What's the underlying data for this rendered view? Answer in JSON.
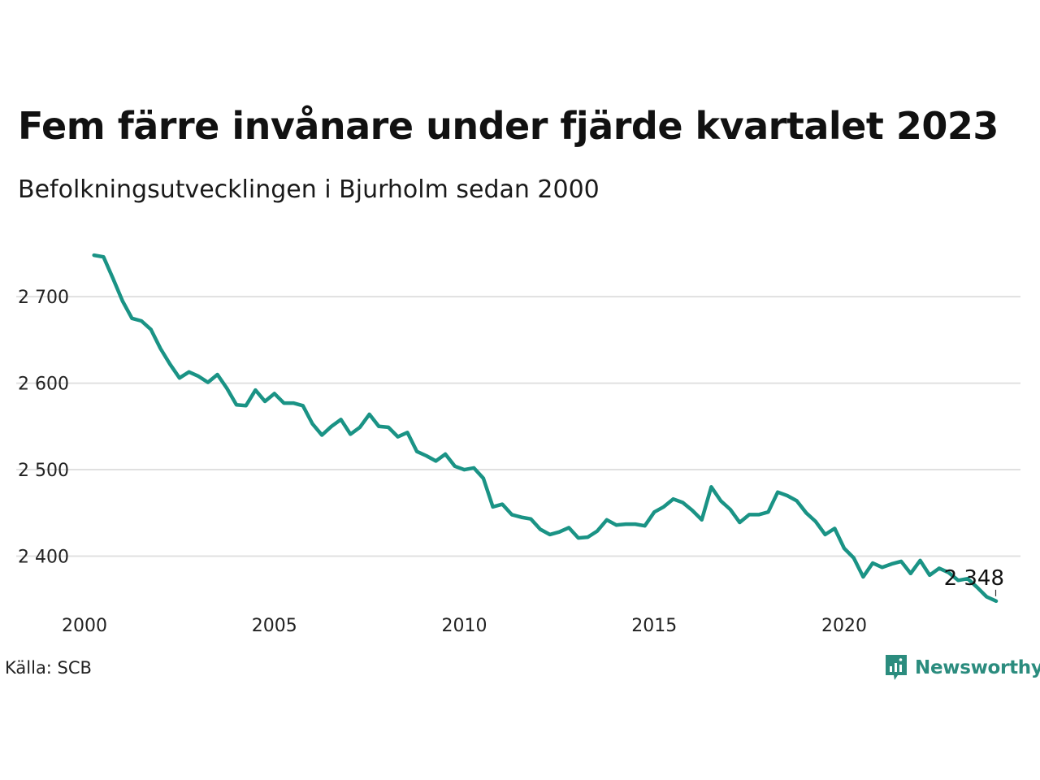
{
  "header": {
    "title": "Fem färre invånare under fjärde kvartalet 2023",
    "subtitle": "Befolkningsutvecklingen i Bjurholm sedan 2000"
  },
  "footer": {
    "source": "Källa: SCB",
    "logo_text": "Newsworthy"
  },
  "colors": {
    "line": "#1a9385",
    "grid": "#e0e0e0",
    "brand": "#2b8c7e"
  },
  "chart_data": {
    "type": "line",
    "title": "Fem färre invånare under fjärde kvartalet 2023",
    "subtitle": "Befolkningsutvecklingen i Bjurholm sedan 2000",
    "xlabel": "",
    "ylabel": "",
    "x_ticks": [
      2000,
      2005,
      2010,
      2015,
      2020
    ],
    "y_ticks": [
      2400,
      2500,
      2600,
      2700
    ],
    "y_tick_labels": [
      "2 400",
      "2 500",
      "2 600",
      "2 700"
    ],
    "xlim": [
      2000,
      2024
    ],
    "ylim": [
      2330,
      2765
    ],
    "grid": true,
    "end_label": "2 348",
    "series": [
      {
        "x": [
          2000.25,
          2000.5,
          2000.75,
          2001.0,
          2001.25,
          2001.5,
          2001.75,
          2002.0,
          2002.25,
          2002.5,
          2002.75,
          2003.0,
          2003.25,
          2003.5,
          2003.75,
          2004.0,
          2004.25,
          2004.5,
          2004.75,
          2005.0,
          2005.25,
          2005.5,
          2005.75,
          2006.0,
          2006.25,
          2006.5,
          2006.75,
          2007.0,
          2007.25,
          2007.5,
          2007.75,
          2008.0,
          2008.25,
          2008.5,
          2008.75,
          2009.0,
          2009.25,
          2009.5,
          2009.75,
          2010.0,
          2010.25,
          2010.5,
          2010.75,
          2011.0,
          2011.25,
          2011.5,
          2011.75,
          2012.0,
          2012.25,
          2012.5,
          2012.75,
          2013.0,
          2013.25,
          2013.5,
          2013.75,
          2014.0,
          2014.25,
          2014.5,
          2014.75,
          2015.0,
          2015.25,
          2015.5,
          2015.75,
          2016.0,
          2016.25,
          2016.5,
          2016.75,
          2017.0,
          2017.25,
          2017.5,
          2017.75,
          2018.0,
          2018.25,
          2018.5,
          2018.75,
          2019.0,
          2019.25,
          2019.5,
          2019.75,
          2020.0,
          2020.25,
          2020.5,
          2020.75,
          2021.0,
          2021.25,
          2021.5,
          2021.75,
          2022.0,
          2022.25,
          2022.5,
          2022.75,
          2023.0,
          2023.25,
          2023.5,
          2023.75,
          2024.0
        ],
        "values": [
          2748,
          2746,
          2721,
          2695,
          2675,
          2672,
          2662,
          2640,
          2622,
          2606,
          2613,
          2608,
          2601,
          2610,
          2594,
          2575,
          2574,
          2592,
          2579,
          2588,
          2577,
          2577,
          2574,
          2553,
          2540,
          2550,
          2558,
          2541,
          2549,
          2564,
          2550,
          2549,
          2538,
          2543,
          2521,
          2516,
          2510,
          2518,
          2504,
          2500,
          2502,
          2490,
          2457,
          2460,
          2448,
          2445,
          2443,
          2431,
          2425,
          2428,
          2433,
          2421,
          2422,
          2429,
          2442,
          2436,
          2437,
          2437,
          2435,
          2451,
          2457,
          2466,
          2462,
          2453,
          2442,
          2480,
          2464,
          2454,
          2439,
          2448,
          2448,
          2451,
          2474,
          2470,
          2464,
          2450,
          2440,
          2425,
          2432,
          2409,
          2398,
          2376,
          2392,
          2387,
          2391,
          2394,
          2380,
          2395,
          2378,
          2386,
          2381,
          2372,
          2374,
          2364,
          2353,
          2348
        ]
      }
    ]
  }
}
